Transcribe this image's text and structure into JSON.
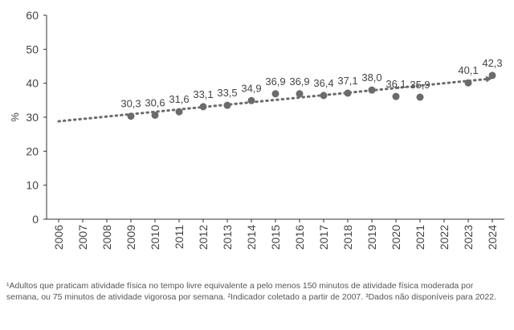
{
  "chart_data": {
    "type": "scatter",
    "ylabel": "%",
    "ylim": [
      0,
      60
    ],
    "yticks": [
      0,
      10,
      20,
      30,
      40,
      50,
      60
    ],
    "ytick_labels": [
      "0",
      "10",
      "20",
      "30",
      "40",
      "50",
      "60"
    ],
    "categories": [
      "2006",
      "2007",
      "2008",
      "2009",
      "2010",
      "2011",
      "2012",
      "2013",
      "2014",
      "2015",
      "2016",
      "2017",
      "2018",
      "2019",
      "2020",
      "2021",
      "2022",
      "2023",
      "2024"
    ],
    "points": [
      {
        "x": "2009",
        "y": 30.3,
        "label": "30,3"
      },
      {
        "x": "2010",
        "y": 30.6,
        "label": "30,6"
      },
      {
        "x": "2011",
        "y": 31.6,
        "label": "31,6"
      },
      {
        "x": "2012",
        "y": 33.1,
        "label": "33,1"
      },
      {
        "x": "2013",
        "y": 33.5,
        "label": "33,5"
      },
      {
        "x": "2014",
        "y": 34.9,
        "label": "34,9"
      },
      {
        "x": "2015",
        "y": 36.9,
        "label": "36,9"
      },
      {
        "x": "2016",
        "y": 36.9,
        "label": "36,9"
      },
      {
        "x": "2017",
        "y": 36.4,
        "label": "36,4"
      },
      {
        "x": "2018",
        "y": 37.1,
        "label": "37,1"
      },
      {
        "x": "2019",
        "y": 38.0,
        "label": "38,0"
      },
      {
        "x": "2020",
        "y": 36.1,
        "label": "36,1"
      },
      {
        "x": "2021",
        "y": 35.9,
        "label": "35,9"
      },
      {
        "x": "2023",
        "y": 40.1,
        "label": "40,1"
      },
      {
        "x": "2024",
        "y": 42.3,
        "label": "42,3"
      }
    ],
    "trendline": {
      "from": {
        "x": "2006",
        "y": 28.8
      },
      "to": {
        "x": "2024",
        "y": 41.3
      },
      "style": "dotted",
      "arrow": true
    },
    "grid": false,
    "colors": {
      "points": "#6b6b6b",
      "trend": "#6b6b6b",
      "axis": "#333333"
    }
  },
  "footnote": "¹Adultos que praticam atividade física no tempo livre equivalente a pelo menos 150 minutos de atividade física moderada por semana, ou 75 minutos de atividade vigorosa por semana. ²Indicador coletado a partir de 2007. ³Dados não disponíveis para 2022."
}
